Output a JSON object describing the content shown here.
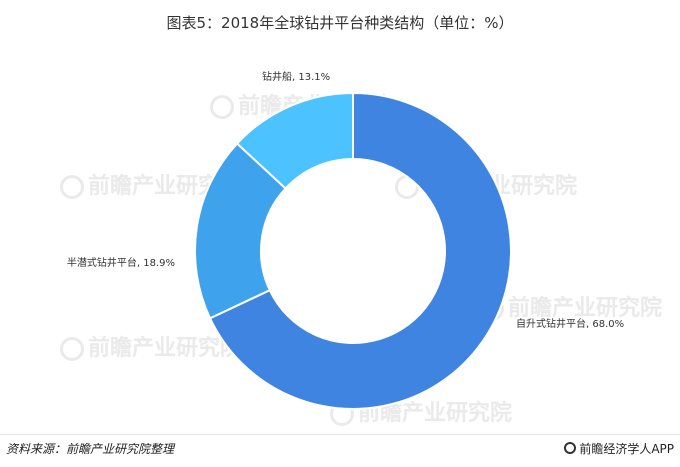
{
  "title": "图表5：2018年全球钻井平台种类结构（单位：%）",
  "chart_data": {
    "type": "pie",
    "donut": true,
    "unit": "%",
    "slices": [
      {
        "name": "自升式钻井平台",
        "value": 68.0,
        "label": "自升式钻井平台, 68.0%",
        "color": "#3f84e0"
      },
      {
        "name": "半潜式钻井平台",
        "value": 18.9,
        "label": "半潜式钻井平台, 18.9%",
        "color": "#3ea3ec"
      },
      {
        "name": "钻井船",
        "value": 13.1,
        "label": "钻井船, 13.1%",
        "color": "#4cc3ff"
      }
    ]
  },
  "watermark": "前瞻产业研究院",
  "footer": {
    "source": "资料来源：前瞻产业研究院整理",
    "brand": "前瞻经济学人APP"
  }
}
